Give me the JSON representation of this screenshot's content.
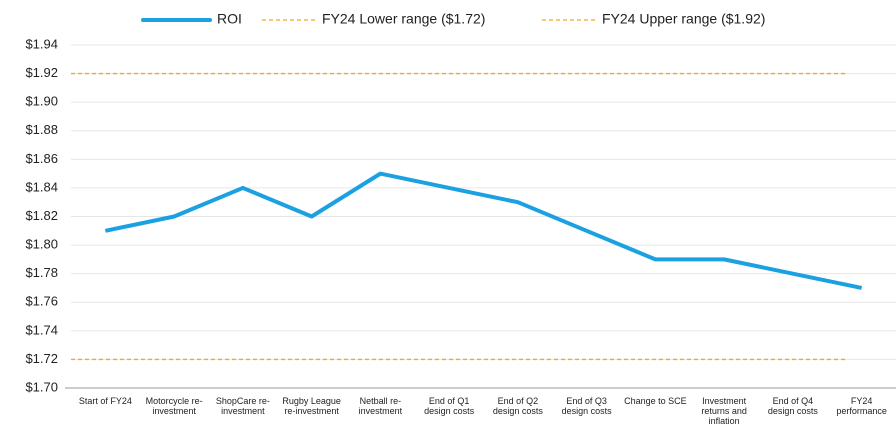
{
  "chart_data": {
    "type": "line",
    "categories": [
      "Start of FY24",
      "Motorcycle re-investment",
      "ShopCare re-investment",
      "Rugby League re-investment",
      "Netball re-investment",
      "End of Q1 design costs",
      "End of Q2 design costs",
      "End of Q3 design costs",
      "Change to SCE",
      "Investment returns and inflation",
      "End of Q4 design costs",
      "FY24 performance"
    ],
    "series": [
      {
        "name": "ROI",
        "color": "#1ba1e2",
        "values": [
          1.81,
          1.82,
          1.84,
          1.82,
          1.85,
          1.84,
          1.83,
          1.81,
          1.79,
          1.79,
          1.78,
          1.77
        ]
      }
    ],
    "reference_lines": [
      {
        "name": "FY24 Lower range ($1.72)",
        "value": 1.72,
        "color": "#f5a623"
      },
      {
        "name": "FY24 Upper range ($1.92)",
        "value": 1.92,
        "color": "#f5a623"
      }
    ],
    "ylim": [
      1.7,
      1.94
    ],
    "yticks": [
      {
        "value": 1.7,
        "label": "$1.70"
      },
      {
        "value": 1.72,
        "label": "$1.72"
      },
      {
        "value": 1.74,
        "label": "$1.74"
      },
      {
        "value": 1.76,
        "label": "$1.76"
      },
      {
        "value": 1.78,
        "label": "$1.78"
      },
      {
        "value": 1.8,
        "label": "$1.80"
      },
      {
        "value": 1.82,
        "label": "$1.82"
      },
      {
        "value": 1.84,
        "label": "$1.84"
      },
      {
        "value": 1.86,
        "label": "$1.86"
      },
      {
        "value": 1.88,
        "label": "$1.88"
      },
      {
        "value": 1.9,
        "label": "$1.90"
      },
      {
        "value": 1.92,
        "label": "$1.92"
      },
      {
        "value": 1.94,
        "label": "$1.94"
      }
    ],
    "grid": true,
    "legend": "top"
  }
}
